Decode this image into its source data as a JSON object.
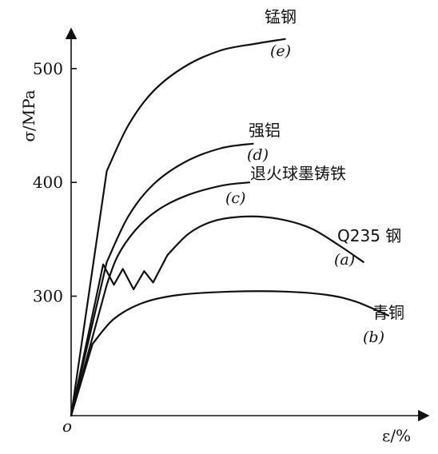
{
  "chart_data": {
    "type": "line",
    "title": "",
    "xlabel": "ε/%",
    "ylabel": "σ/MPa",
    "origin_label": "o",
    "xlim": [
      0,
      10
    ],
    "ylim": [
      195,
      535
    ],
    "yticks": [
      300,
      400,
      500
    ],
    "x_ticks_labeled": false,
    "grid": false,
    "legend": "inline labels at curve ends",
    "series": [
      {
        "name": "锰钢",
        "tag": "(e)",
        "points": [
          [
            0,
            195
          ],
          [
            1.0,
            410
          ],
          [
            1.6,
            450
          ],
          [
            2.3,
            480
          ],
          [
            3.2,
            502
          ],
          [
            4.2,
            516
          ],
          [
            5.2,
            522
          ],
          [
            6.0,
            526
          ]
        ]
      },
      {
        "name": "强铝",
        "tag": "(d)",
        "points": [
          [
            0,
            195
          ],
          [
            1.0,
            330
          ],
          [
            1.6,
            370
          ],
          [
            2.3,
            398
          ],
          [
            3.2,
            418
          ],
          [
            4.2,
            430
          ],
          [
            5.1,
            434
          ]
        ]
      },
      {
        "name": "退火球墨铸铁",
        "tag": "(c)",
        "points": [
          [
            0,
            195
          ],
          [
            1.0,
            310
          ],
          [
            1.3,
            335
          ],
          [
            1.8,
            358
          ],
          [
            2.4,
            375
          ],
          [
            3.2,
            388
          ],
          [
            4.2,
            397
          ],
          [
            5.0,
            400
          ]
        ]
      },
      {
        "name": "Q235 钢",
        "tag": "(a)",
        "points": [
          [
            0,
            195
          ],
          [
            0.9,
            328
          ],
          [
            1.2,
            310
          ],
          [
            1.45,
            324
          ],
          [
            1.75,
            306
          ],
          [
            2.05,
            322
          ],
          [
            2.3,
            312
          ],
          [
            2.7,
            336
          ],
          [
            3.3,
            355
          ],
          [
            4.0,
            366
          ],
          [
            4.9,
            370
          ],
          [
            5.8,
            368
          ],
          [
            6.7,
            360
          ],
          [
            7.5,
            345
          ],
          [
            8.2,
            330
          ]
        ]
      },
      {
        "name": "青铜",
        "tag": "(b)",
        "points": [
          [
            0,
            195
          ],
          [
            0.6,
            258
          ],
          [
            1.2,
            280
          ],
          [
            2.0,
            294
          ],
          [
            3.0,
            301
          ],
          [
            4.5,
            304
          ],
          [
            6.0,
            304
          ],
          [
            7.2,
            301
          ],
          [
            8.0,
            295
          ],
          [
            8.9,
            283
          ]
        ]
      }
    ]
  }
}
